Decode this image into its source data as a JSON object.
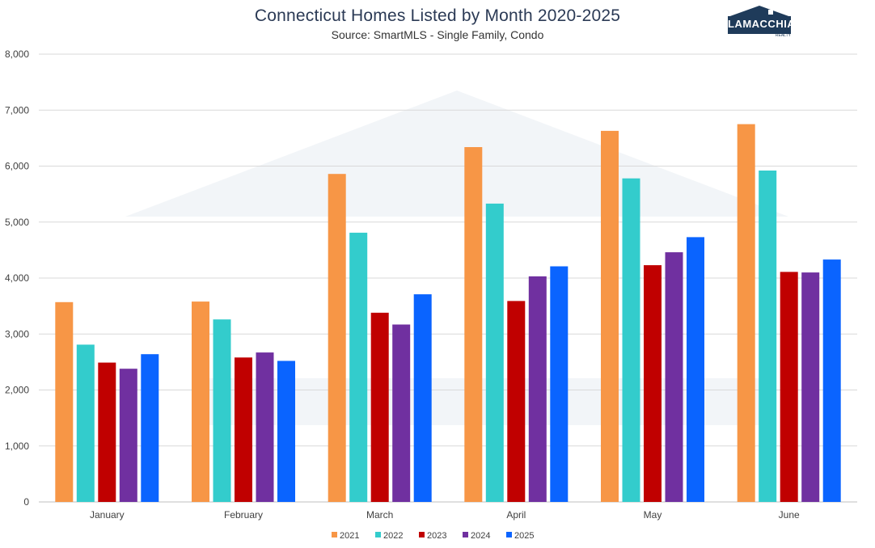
{
  "chart_data": {
    "type": "bar",
    "title": "Connecticut Homes Listed by Month 2020-2025",
    "subtitle": "Source: SmartMLS - Single Family, Condo",
    "categories": [
      "January",
      "February",
      "March",
      "April",
      "May",
      "June"
    ],
    "series": [
      {
        "name": "2021",
        "color": "#f79646",
        "values": [
          3570,
          3580,
          5860,
          6340,
          6630,
          6750
        ]
      },
      {
        "name": "2022",
        "color": "#33cccc",
        "values": [
          2810,
          3260,
          4810,
          5330,
          5780,
          5920
        ]
      },
      {
        "name": "2023",
        "color": "#c00000",
        "values": [
          2490,
          2580,
          3380,
          3590,
          4230,
          4110
        ]
      },
      {
        "name": "2024",
        "color": "#7030a0",
        "values": [
          2380,
          2670,
          3170,
          4030,
          4460,
          4100
        ]
      },
      {
        "name": "2025",
        "color": "#0a64ff",
        "values": [
          2640,
          2520,
          3710,
          4210,
          4730,
          4330
        ]
      }
    ],
    "ylim": [
      0,
      8000
    ],
    "yticks": [
      "0",
      "1,000",
      "2,000",
      "3,000",
      "4,000",
      "5,000",
      "6,000",
      "7,000",
      "8,000"
    ],
    "ytick_values": [
      0,
      1000,
      2000,
      3000,
      4000,
      5000,
      6000,
      7000,
      8000
    ],
    "grid": true,
    "legend_position": "bottom"
  },
  "logo": {
    "name": "LAMACCHIA",
    "sub": "REALTY"
  },
  "colors": {
    "title": "#2b3a55",
    "grid": "#d9d9d9",
    "watermark": "#e8edf2"
  }
}
